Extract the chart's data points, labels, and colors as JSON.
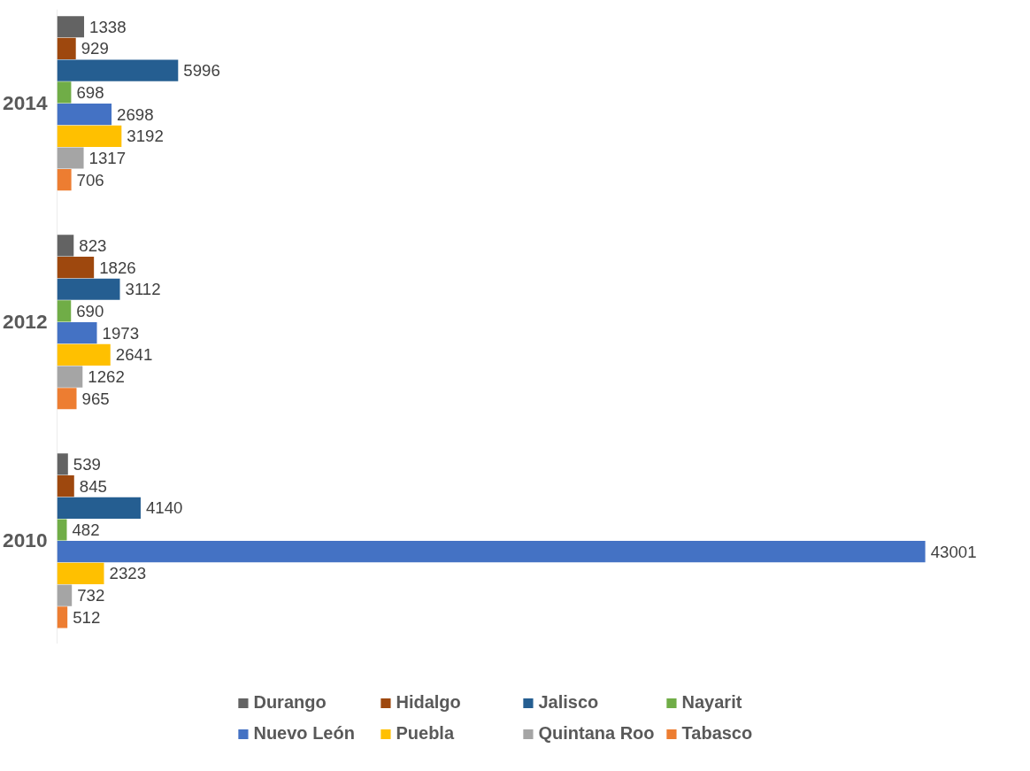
{
  "chart_data": {
    "type": "bar",
    "orientation": "horizontal",
    "categories": [
      "2014",
      "2012",
      "2010"
    ],
    "series": [
      {
        "name": "Durango",
        "color": "#636363",
        "values": [
          1338,
          823,
          539
        ]
      },
      {
        "name": "Hidalgo",
        "color": "#9e480e",
        "values": [
          929,
          1826,
          845
        ]
      },
      {
        "name": "Jalisco",
        "color": "#255e91",
        "values": [
          5996,
          3112,
          4140
        ]
      },
      {
        "name": "Nayarit",
        "color": "#70ad47",
        "values": [
          698,
          690,
          482
        ]
      },
      {
        "name": "Nuevo León",
        "color": "#4472c4",
        "values": [
          2698,
          1973,
          43001
        ]
      },
      {
        "name": "Puebla",
        "color": "#ffc000",
        "values": [
          3192,
          2641,
          2323
        ]
      },
      {
        "name": "Quintana Roo",
        "color": "#a5a5a5",
        "values": [
          1317,
          1262,
          732
        ]
      },
      {
        "name": "Tabasco",
        "color": "#ed7d31",
        "values": [
          706,
          965,
          512
        ]
      }
    ],
    "data_labels": true,
    "legend": "bottom",
    "grid": false,
    "tick_labels": "y"
  }
}
